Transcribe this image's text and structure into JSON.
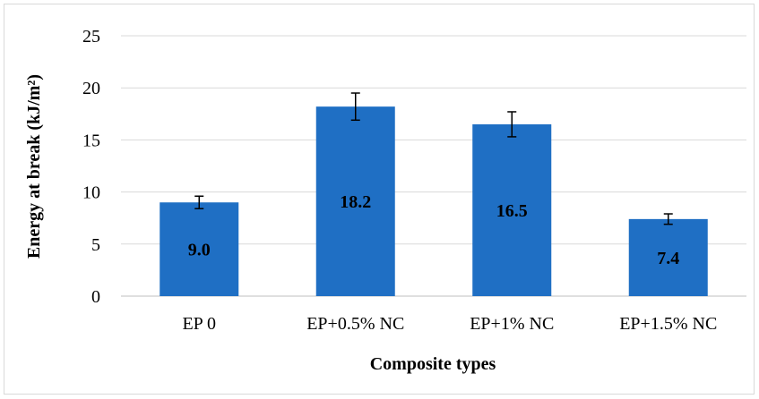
{
  "chart_data": {
    "type": "bar",
    "title": "",
    "xlabel": "Composite types",
    "ylabel": "Energy at break (kJ/m²)",
    "ylim": [
      0,
      25
    ],
    "yticks": [
      0,
      5,
      10,
      15,
      20,
      25
    ],
    "grid": true,
    "categories": [
      "EP 0",
      "EP+0.5% NC",
      "EP+1% NC",
      "EP+1.5% NC"
    ],
    "series": [
      {
        "values": [
          9.0,
          18.2,
          16.5,
          7.4
        ],
        "error": [
          0.6,
          1.3,
          1.2,
          0.5
        ],
        "labels": [
          "9.0",
          "18.2",
          "16.5",
          "7.4"
        ],
        "color": "#1f6fc4"
      }
    ]
  }
}
